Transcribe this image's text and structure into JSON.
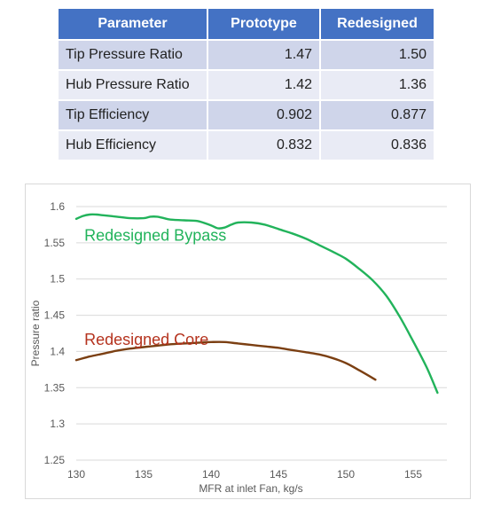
{
  "table": {
    "headers": [
      "Parameter",
      "Prototype",
      "Redesigned"
    ],
    "rows": [
      {
        "name": "Tip Pressure Ratio",
        "prototype": "1.47",
        "redesigned": "1.50"
      },
      {
        "name": "Hub Pressure Ratio",
        "prototype": "1.42",
        "redesigned": "1.36"
      },
      {
        "name": "Tip Efficiency",
        "prototype": "0.902",
        "redesigned": "0.877"
      },
      {
        "name": "Hub Efficiency",
        "prototype": "0.832",
        "redesigned": "0.836"
      }
    ]
  },
  "chart_data": {
    "type": "line",
    "title": "",
    "xlabel": "MFR at inlet Fan, kg/s",
    "ylabel": "Pressure ratio",
    "xlim": [
      130,
      157.5
    ],
    "ylim": [
      1.25,
      1.6
    ],
    "xticks": [
      "130",
      "135",
      "140",
      "145",
      "150",
      "155"
    ],
    "yticks": [
      "1.25",
      "1.3",
      "1.35",
      "1.4",
      "1.45",
      "1.5",
      "1.55",
      "1.6"
    ],
    "grid": "horizontal",
    "series": [
      {
        "name": "Redesigned Bypass",
        "color": "#22b35b",
        "x": [
          130,
          130.5,
          131,
          131.5,
          132,
          133,
          134,
          135,
          135.5,
          136,
          136.5,
          137,
          138,
          139,
          140,
          140.5,
          141,
          141.5,
          142,
          143,
          144,
          145,
          146,
          147,
          148,
          149,
          150,
          151,
          152,
          153,
          154,
          155,
          156,
          156.8
        ],
        "y": [
          1.583,
          1.587,
          1.589,
          1.589,
          1.588,
          1.586,
          1.584,
          1.584,
          1.586,
          1.586,
          1.584,
          1.582,
          1.581,
          1.58,
          1.574,
          1.57,
          1.571,
          1.575,
          1.578,
          1.578,
          1.575,
          1.569,
          1.563,
          1.556,
          1.547,
          1.538,
          1.528,
          1.514,
          1.498,
          1.477,
          1.448,
          1.414,
          1.378,
          1.343
        ]
      },
      {
        "name": "Redesigned Core",
        "color": "#7b3f12",
        "x": [
          130,
          131,
          132,
          133,
          134,
          135,
          136,
          137,
          138,
          139,
          140,
          141,
          142,
          143,
          144,
          145,
          146,
          147,
          148,
          149,
          150,
          151,
          152.2
        ],
        "y": [
          1.388,
          1.393,
          1.397,
          1.401,
          1.404,
          1.406,
          1.408,
          1.41,
          1.411,
          1.412,
          1.413,
          1.413,
          1.411,
          1.409,
          1.407,
          1.405,
          1.402,
          1.399,
          1.396,
          1.391,
          1.384,
          1.374,
          1.361
        ]
      }
    ],
    "annotations": [
      {
        "text": "Redesigned Bypass",
        "x": 130.6,
        "y": 1.553,
        "color": "#22b35b"
      },
      {
        "text": "Redesigned Core",
        "x": 130.6,
        "y": 1.409,
        "color": "#b5331e"
      }
    ]
  }
}
